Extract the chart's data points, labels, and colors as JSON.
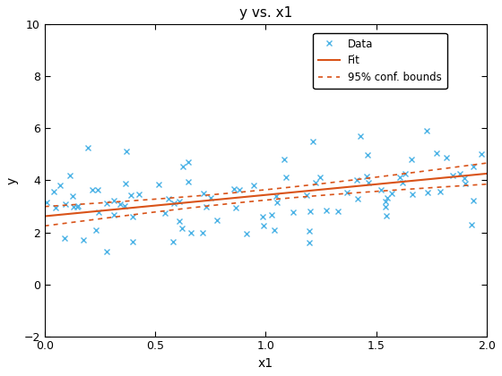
{
  "title": "y vs. x1",
  "xlabel": "x1",
  "ylabel": "y",
  "xlim": [
    0,
    2
  ],
  "ylim": [
    -2,
    10
  ],
  "xticks": [
    0,
    0.5,
    1,
    1.5,
    2
  ],
  "yticks": [
    -2,
    0,
    2,
    4,
    6,
    8,
    10
  ],
  "fit_intercept": 2.62,
  "fit_slope": 0.82,
  "conf_intercept_upper": 3.28,
  "conf_slope_upper": 0.6,
  "conf_intercept_lower": 1.96,
  "conf_slope_lower": 1.04,
  "data_color": "#4db3e6",
  "fit_color": "#d95319",
  "conf_color": "#d95319",
  "legend_labels": [
    "Data",
    "Fit",
    "95% conf. bounds"
  ],
  "seed": 42,
  "n_points": 100,
  "noise_std": 1.0,
  "figwidth": 5.6,
  "figheight": 4.2,
  "dpi": 100
}
